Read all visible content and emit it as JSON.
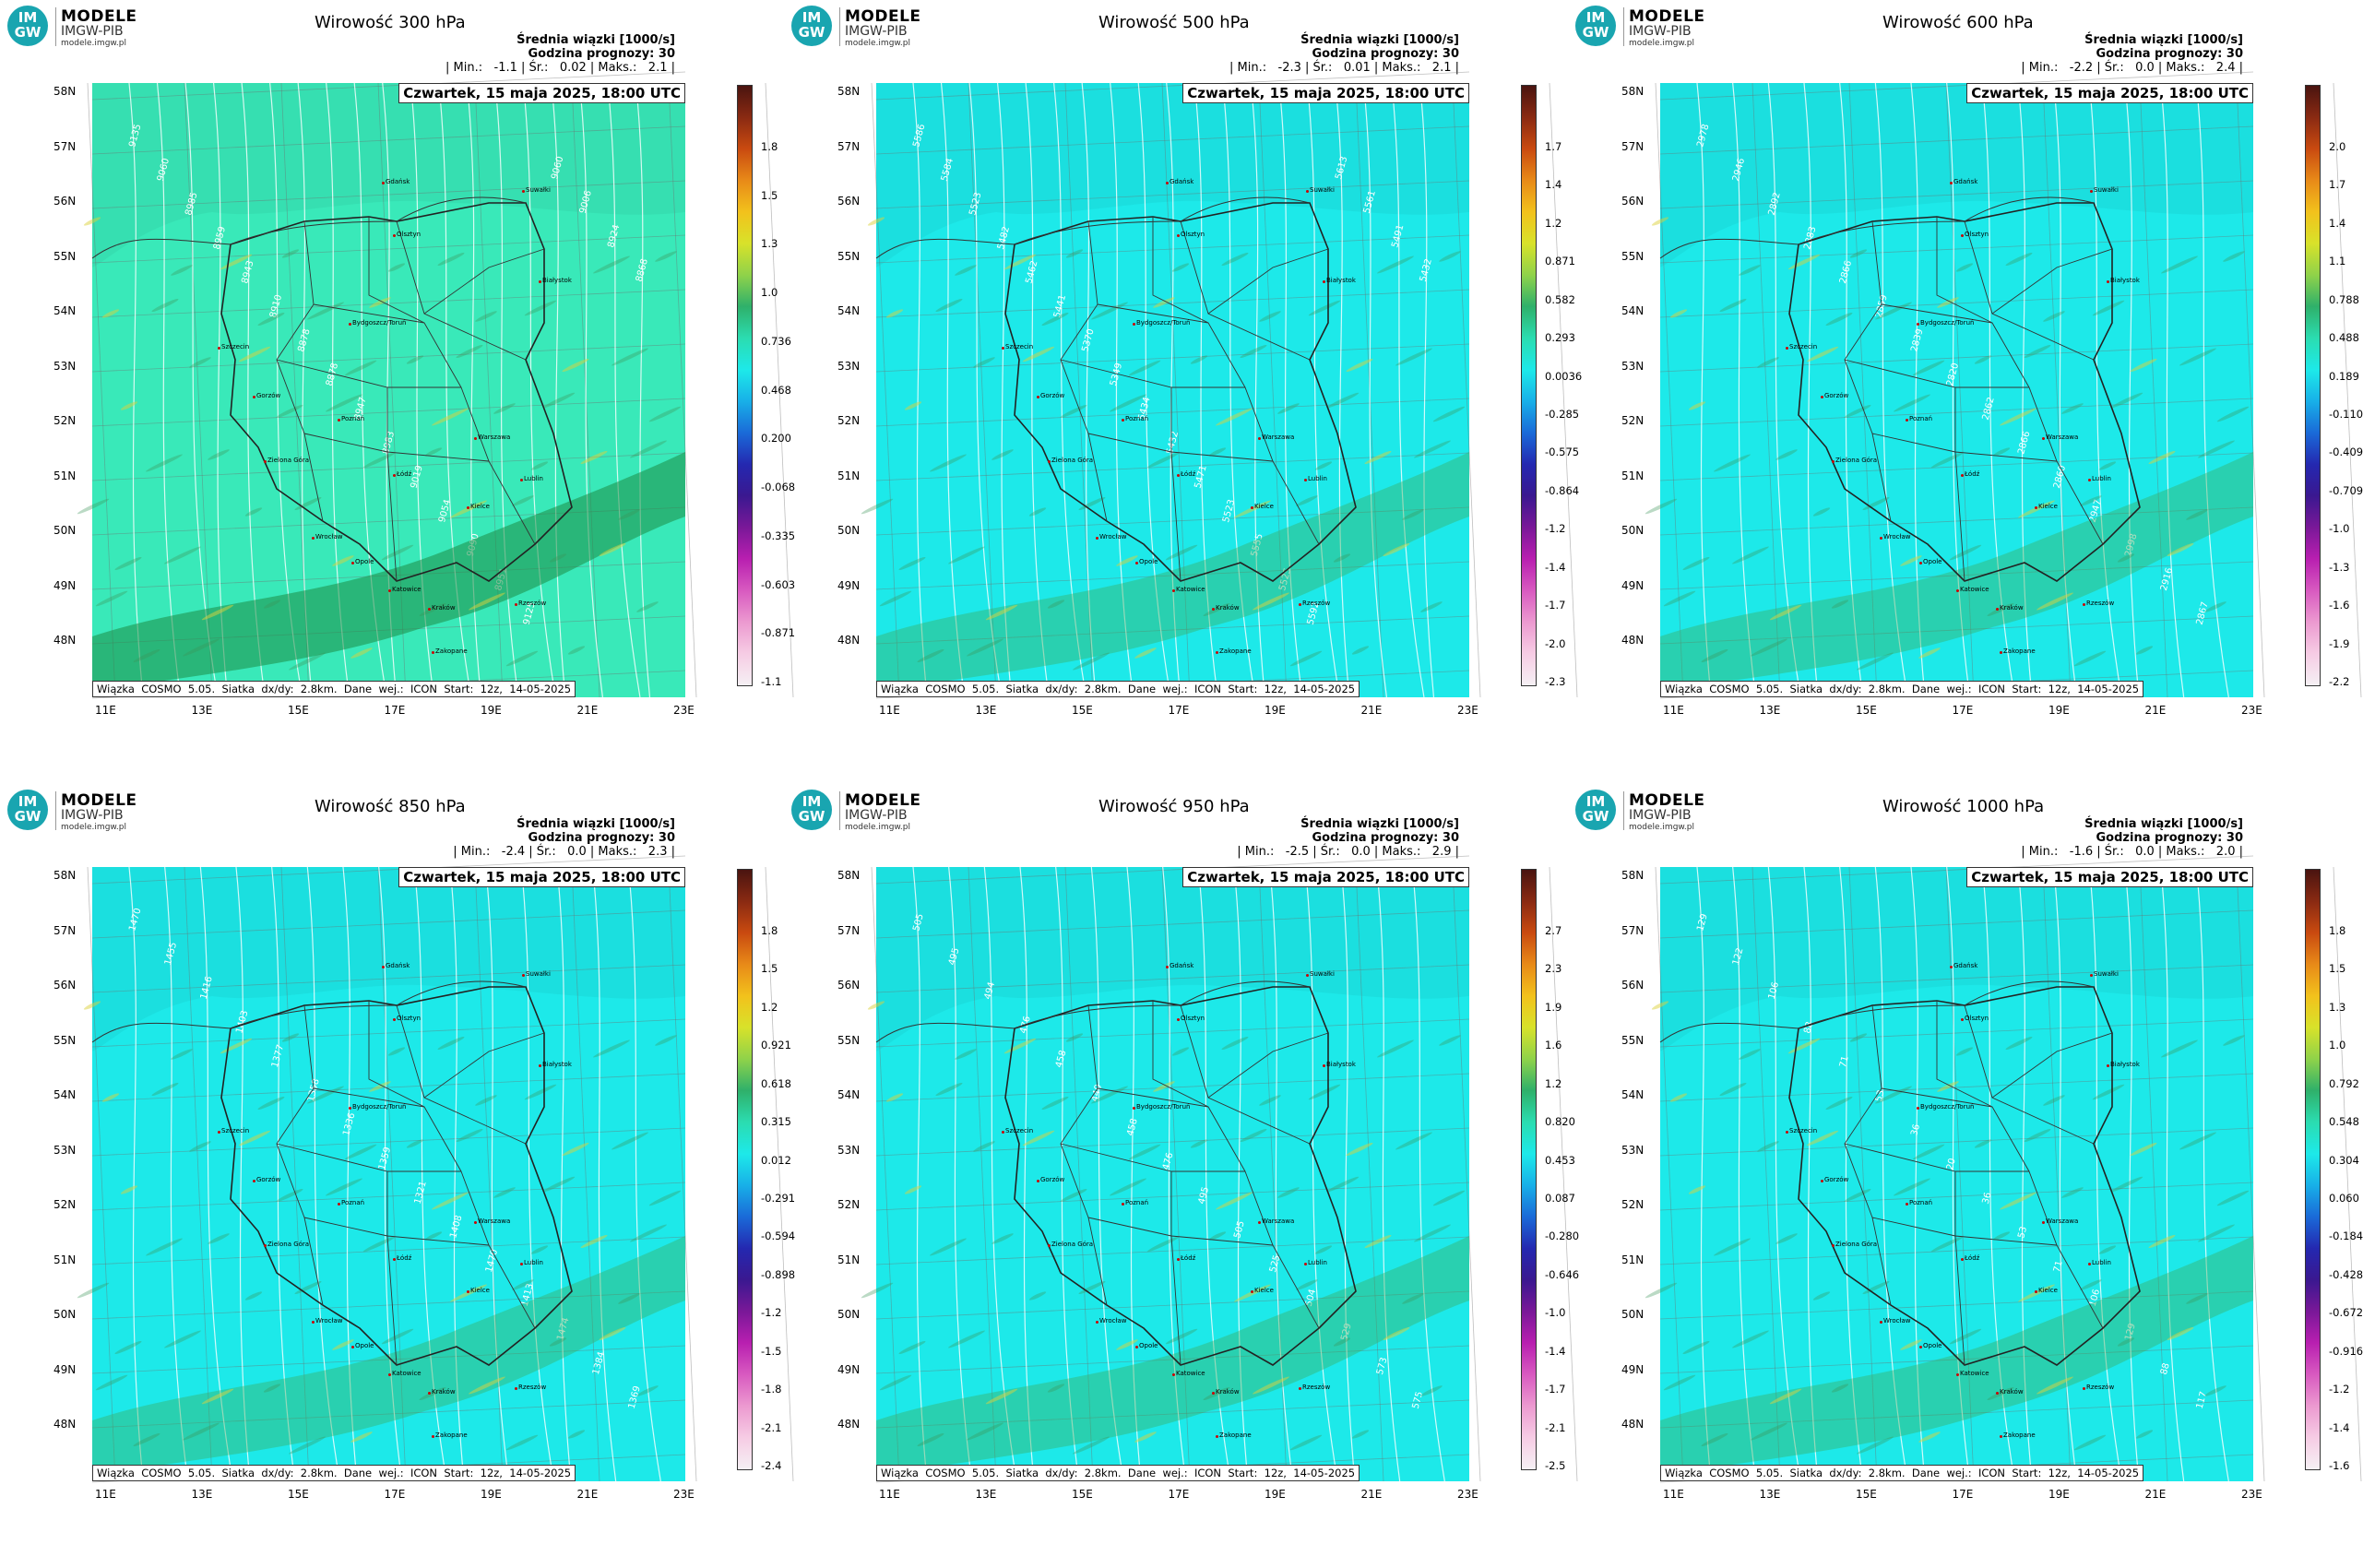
{
  "logo": {
    "badge_top": "IM",
    "badge_bottom": "GW",
    "line1": "MODELE",
    "line2": "IMGW-PIB",
    "line3": "modele.imgw.pl"
  },
  "common": {
    "subtitle": "Średnia wiązki [1000/s]",
    "forecast": "Godzina prognozy: 30",
    "date": "Czwartek, 15 maja 2025, 18:00 UTC",
    "footer": "Wiązka  COSMO  5.05.  Siatka  dx/dy:  2.8km.  Dane  wej.:  ICON  Start:  12z,  14-05-2025",
    "lat_labels": [
      "58N",
      "57N",
      "56N",
      "55N",
      "54N",
      "53N",
      "52N",
      "51N",
      "50N",
      "49N",
      "48N"
    ],
    "lon_labels": [
      "11E",
      "13E",
      "15E",
      "17E",
      "19E",
      "21E",
      "23E"
    ],
    "cities": [
      "Gdańsk",
      "Suwałki",
      "Olsztyn",
      "Białystok",
      "Szczecin",
      "Bydgoszcz/Toruń",
      "Gorzów",
      "Poznań",
      "Warszawa",
      "Zielona Góra",
      "Łódź",
      "Lublin",
      "Kielce",
      "Wrocław",
      "Opole",
      "Katowice",
      "Kraków",
      "Rzeszów",
      "Zakopane"
    ]
  },
  "panels": [
    {
      "title": "Wirowość 300 hPa",
      "stats": "| Min.:   -1.1 | Śr.:   0.02 | Maks.:   2.1 |",
      "bg": "#39e9b9",
      "colorbar": [
        "1.8",
        "1.5",
        "1.3",
        "1.0",
        "0.736",
        "0.468",
        "0.200",
        "-0.068",
        "-0.335",
        "-0.603",
        "-0.871",
        "-1.1"
      ],
      "contours": [
        "9135",
        "9060",
        "8985",
        "8959",
        "8943",
        "8910",
        "8878",
        "8878",
        "8947",
        "8983",
        "9019",
        "9054",
        "9090",
        "8951",
        "9125",
        "9060",
        "9006",
        "8924",
        "8868"
      ]
    },
    {
      "title": "Wirowość 500 hPa",
      "stats": "| Min.:   -2.3 | Śr.:   0.01 | Maks.:   2.1 |",
      "bg": "#1de9e9",
      "colorbar": [
        "1.7",
        "1.4",
        "1.2",
        "0.871",
        "0.582",
        "0.293",
        "0.0036",
        "-0.285",
        "-0.575",
        "-0.864",
        "-1.2",
        "-1.4",
        "-1.7",
        "-2.0",
        "-2.3"
      ],
      "contours": [
        "5586",
        "5584",
        "5523",
        "5482",
        "5462",
        "5441",
        "5370",
        "5349",
        "5434",
        "5432",
        "5471",
        "5523",
        "5555",
        "5525",
        "5592",
        "5613",
        "5561",
        "5491",
        "5432"
      ]
    },
    {
      "title": "Wirowość 600 hPa",
      "stats": "| Min.:   -2.2 | Śr.:   0.0 | Maks.:   2.4 |",
      "bg": "#1de9e9",
      "colorbar": [
        "2.0",
        "1.7",
        "1.4",
        "1.1",
        "0.788",
        "0.488",
        "0.189",
        "-0.110",
        "-0.409",
        "-0.709",
        "-1.0",
        "-1.3",
        "-1.6",
        "-1.9",
        "-2.2"
      ],
      "contours": [
        "2978",
        "2946",
        "2892",
        "2883",
        "2866",
        "2859",
        "2839",
        "2820",
        "2862",
        "2866",
        "2860",
        "2947",
        "2998",
        "2916",
        "2867"
      ]
    },
    {
      "title": "Wirowość 850 hPa",
      "stats": "| Min.:   -2.4 | Śr.:   0.0 | Maks.:   2.3 |",
      "bg": "#1de9e9",
      "colorbar": [
        "1.8",
        "1.5",
        "1.2",
        "0.921",
        "0.618",
        "0.315",
        "0.012",
        "-0.291",
        "-0.594",
        "-0.898",
        "-1.2",
        "-1.5",
        "-1.8",
        "-2.1",
        "-2.4"
      ],
      "contours": [
        "1470",
        "1455",
        "1416",
        "1403",
        "1377",
        "1358",
        "1336",
        "1359",
        "1321",
        "1408",
        "1470",
        "1413",
        "1474",
        "1384",
        "1369"
      ]
    },
    {
      "title": "Wirowość 950 hPa",
      "stats": "| Min.:   -2.5 | Śr.:   0.0 | Maks.:   2.9 |",
      "bg": "#1de9e9",
      "colorbar": [
        "2.7",
        "2.3",
        "1.9",
        "1.6",
        "1.2",
        "0.820",
        "0.453",
        "0.087",
        "-0.280",
        "-0.646",
        "-1.0",
        "-1.4",
        "-1.7",
        "-2.1",
        "-2.5"
      ],
      "contours": [
        "505",
        "495",
        "494",
        "476",
        "458",
        "440",
        "458",
        "476",
        "495",
        "505",
        "525",
        "504",
        "529",
        "573",
        "575"
      ]
    },
    {
      "title": "Wirowość 1000 hPa",
      "stats": "| Min.:   -1.6 | Śr.:   0.0 | Maks.:   2.0 |",
      "bg": "#1de9e9",
      "colorbar": [
        "1.8",
        "1.5",
        "1.3",
        "1.0",
        "0.792",
        "0.548",
        "0.304",
        "0.060",
        "-0.184",
        "-0.428",
        "-0.672",
        "-0.916",
        "-1.2",
        "-1.4",
        "-1.6"
      ],
      "contours": [
        "129",
        "122",
        "106",
        "88",
        "71",
        "53",
        "36",
        "20",
        "36",
        "53",
        "71",
        "106",
        "129",
        "88",
        "117"
      ]
    }
  ]
}
